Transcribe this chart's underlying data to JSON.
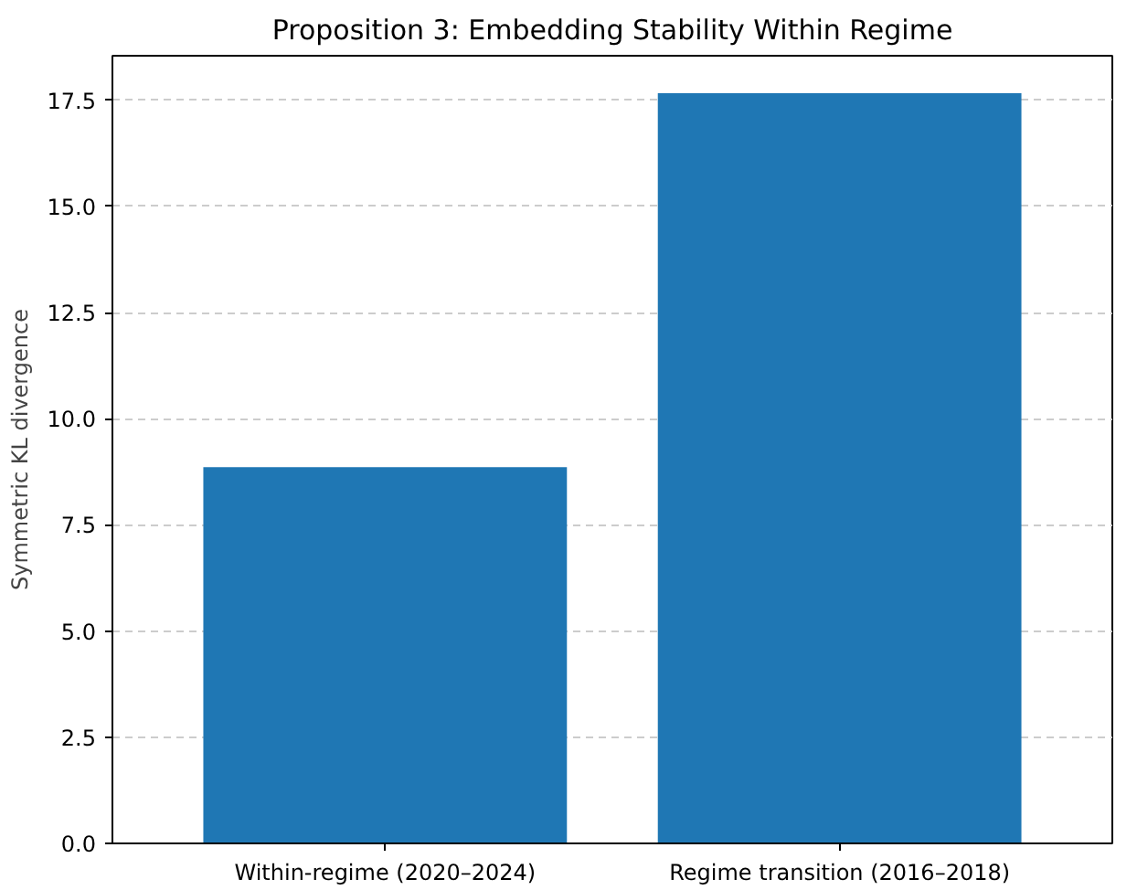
{
  "chart_data": {
    "type": "bar",
    "title": "Proposition 3: Embedding Stability Within Regime",
    "ylabel": "Symmetric KL divergence",
    "categories": [
      "Within-regime (2020–2024)",
      "Regime transition (2016–2018)"
    ],
    "values": [
      8.86,
      17.67
    ],
    "color": "#1f77b4",
    "ylim": [
      0,
      18.55
    ],
    "yticks": [
      {
        "value": 0,
        "label": "0.0"
      },
      {
        "value": 2.5,
        "label": "2.5"
      },
      {
        "value": 5,
        "label": "5.0"
      },
      {
        "value": 7.5,
        "label": "7.5"
      },
      {
        "value": 10,
        "label": "10.0"
      },
      {
        "value": 12.5,
        "label": "12.5"
      },
      {
        "value": 15,
        "label": "15.0"
      },
      {
        "value": 17.5,
        "label": "17.5"
      }
    ],
    "grid": "y"
  }
}
